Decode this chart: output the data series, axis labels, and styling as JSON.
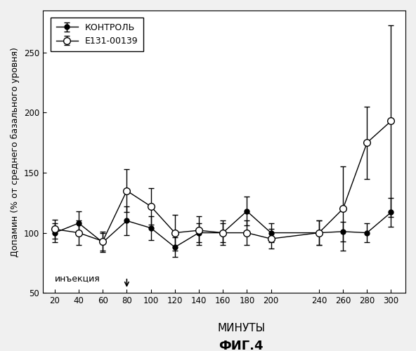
{
  "x": [
    20,
    40,
    60,
    80,
    100,
    120,
    140,
    160,
    180,
    200,
    240,
    260,
    280,
    300
  ],
  "control_y": [
    100,
    108,
    92,
    110,
    104,
    88,
    100,
    100,
    118,
    100,
    100,
    101,
    100,
    117
  ],
  "control_yerr": [
    8,
    10,
    8,
    12,
    10,
    8,
    8,
    8,
    12,
    8,
    10,
    8,
    8,
    12
  ],
  "e131_y": [
    103,
    100,
    93,
    135,
    122,
    100,
    102,
    100,
    100,
    95,
    100,
    120,
    175,
    193
  ],
  "e131_yerr": [
    8,
    10,
    8,
    18,
    15,
    15,
    12,
    10,
    10,
    8,
    10,
    35,
    30,
    80
  ],
  "xlabel": "МИНУТЫ",
  "ylabel": "Допамин (% от среднего базального уровня)",
  "label_control": "КОНТРОЛЬ",
  "label_e131": "E131-00139",
  "annotation": "инъекция",
  "title_bottom": "ФИГ.4",
  "ylim": [
    50,
    285
  ],
  "yticks": [
    50,
    100,
    150,
    200,
    250
  ],
  "xticks": [
    20,
    40,
    60,
    80,
    100,
    120,
    140,
    160,
    180,
    200,
    240,
    260,
    280,
    300
  ],
  "injection_x": 80,
  "background_color": "#f0f0f0",
  "plot_bg_color": "#ffffff",
  "line_color": "#000000"
}
